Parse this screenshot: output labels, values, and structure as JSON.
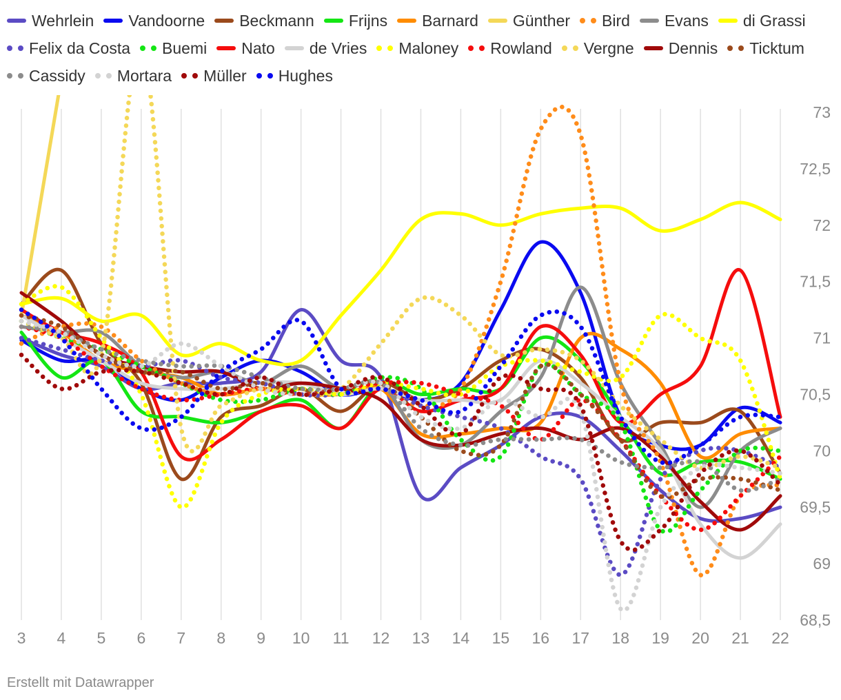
{
  "credit": "Erstellt mit Datawrapper",
  "chart_data": {
    "type": "line",
    "title": "",
    "xlabel": "",
    "ylabel": "",
    "x": [
      3,
      4,
      5,
      6,
      7,
      8,
      9,
      10,
      11,
      12,
      13,
      14,
      15,
      16,
      17,
      18,
      19,
      20,
      21,
      22
    ],
    "ylim": [
      68.5,
      73
    ],
    "yticks": [
      "73",
      "72,5",
      "72",
      "71,5",
      "71",
      "70,5",
      "70",
      "69,5",
      "69",
      "68,5"
    ],
    "ytick_values": [
      73,
      72.5,
      72,
      71.5,
      71,
      70.5,
      70,
      69.5,
      69,
      68.5
    ],
    "grid": "vertical",
    "legend_position": "top",
    "series": [
      {
        "name": "Wehrlein",
        "color": "#5b4bc4",
        "dotted": false,
        "values": [
          71.0,
          70.85,
          70.75,
          70.55,
          70.6,
          70.6,
          70.7,
          71.25,
          70.8,
          70.65,
          69.6,
          69.85,
          70.05,
          70.3,
          70.3,
          70.0,
          69.65,
          69.4,
          69.4,
          69.5
        ]
      },
      {
        "name": "Vandoorne",
        "color": "#0a0af0",
        "dotted": false,
        "values": [
          70.98,
          70.8,
          70.8,
          70.55,
          70.45,
          70.65,
          70.8,
          70.7,
          70.5,
          70.55,
          70.45,
          70.6,
          71.25,
          71.85,
          71.4,
          70.3,
          70.05,
          70.05,
          70.38,
          70.25
        ]
      },
      {
        "name": "Beckmann",
        "color": "#9b4a1c",
        "dotted": false,
        "values": [
          71.3,
          71.6,
          70.95,
          70.6,
          69.75,
          70.3,
          70.4,
          70.55,
          70.35,
          70.6,
          70.45,
          70.55,
          70.8,
          70.9,
          70.65,
          70.1,
          70.25,
          70.25,
          70.35,
          69.8
        ]
      },
      {
        "name": "Frijns",
        "color": "#14e614",
        "dotted": false,
        "values": [
          71.05,
          70.65,
          70.8,
          70.35,
          70.3,
          70.25,
          70.35,
          70.45,
          70.2,
          70.6,
          70.5,
          70.55,
          70.55,
          71.0,
          70.8,
          70.3,
          69.8,
          69.9,
          69.9,
          69.75
        ]
      },
      {
        "name": "Barnard",
        "color": "#ff8c00",
        "dotted": false,
        "values": [
          71.2,
          71.05,
          70.8,
          70.7,
          70.65,
          70.5,
          70.55,
          70.5,
          70.5,
          70.55,
          70.15,
          70.15,
          70.2,
          70.25,
          71.0,
          70.9,
          70.6,
          69.95,
          70.15,
          70.2
        ]
      },
      {
        "name": "Günther",
        "color": "#f4d858",
        "dotted": false,
        "values": [
          71.2,
          73.3,
          null,
          null,
          null,
          null,
          null,
          null,
          null,
          null,
          null,
          null,
          null,
          null,
          null,
          null,
          null,
          null,
          null,
          null
        ]
      },
      {
        "name": "Bird",
        "color": "#ff8c1a",
        "dotted": true,
        "values": [
          70.95,
          71.1,
          71.1,
          70.8,
          70.6,
          70.5,
          70.55,
          70.5,
          70.5,
          70.55,
          70.4,
          70.55,
          71.5,
          72.85,
          72.8,
          70.6,
          69.9,
          68.9,
          69.6,
          69.7
        ]
      },
      {
        "name": "Evans",
        "color": "#8c8c8c",
        "dotted": false,
        "values": [
          71.1,
          71.05,
          71.05,
          70.75,
          70.65,
          70.7,
          70.6,
          70.75,
          70.55,
          70.6,
          70.1,
          70.05,
          70.35,
          70.65,
          71.45,
          70.6,
          70.05,
          69.5,
          70.0,
          70.2
        ]
      },
      {
        "name": "di Grassi",
        "color": "#ffff00",
        "dotted": false,
        "values": [
          71.3,
          71.35,
          71.15,
          71.2,
          70.85,
          70.95,
          70.8,
          70.8,
          71.2,
          71.6,
          72.05,
          72.1,
          72.0,
          72.1,
          72.15,
          72.15,
          71.95,
          72.05,
          72.2,
          72.05
        ]
      },
      {
        "name": "Felix da Costa",
        "color": "#5b4bc4",
        "dotted": true,
        "values": [
          71.0,
          70.9,
          70.8,
          70.75,
          70.8,
          70.65,
          70.6,
          70.5,
          70.5,
          70.55,
          70.4,
          70.3,
          70.2,
          69.95,
          69.75,
          68.9,
          69.75,
          70.0,
          70.0,
          69.85
        ]
      },
      {
        "name": "Buemi",
        "color": "#14e614",
        "dotted": true,
        "values": [
          71.15,
          71.0,
          70.9,
          70.75,
          70.6,
          70.45,
          70.45,
          70.55,
          70.5,
          70.65,
          70.55,
          70.1,
          69.95,
          70.75,
          70.5,
          70.25,
          69.3,
          69.65,
          70.0,
          70.0
        ]
      },
      {
        "name": "Nato",
        "color": "#f50d0d",
        "dotted": false,
        "values": [
          71.25,
          71.05,
          70.95,
          70.7,
          69.95,
          70.1,
          70.35,
          70.4,
          70.2,
          70.55,
          70.35,
          70.45,
          70.55,
          71.1,
          70.85,
          70.25,
          70.5,
          70.75,
          71.6,
          70.3
        ]
      },
      {
        "name": "de Vries",
        "color": "#d3d3d3",
        "dotted": false,
        "values": [
          71.2,
          71.0,
          70.8,
          70.6,
          70.55,
          70.55,
          70.6,
          70.6,
          70.5,
          70.55,
          70.45,
          70.45,
          70.45,
          70.8,
          70.6,
          70.3,
          70.0,
          69.35,
          69.05,
          69.35
        ]
      },
      {
        "name": "Maloney",
        "color": "#ffff00",
        "dotted": true,
        "values": [
          71.3,
          71.45,
          71.0,
          70.5,
          69.5,
          70.25,
          70.5,
          70.55,
          70.5,
          70.6,
          70.55,
          70.5,
          70.75,
          70.8,
          70.7,
          70.65,
          71.2,
          71.0,
          70.8,
          69.75
        ]
      },
      {
        "name": "Rowland",
        "color": "#f50d0d",
        "dotted": true,
        "values": [
          71.1,
          71.0,
          70.75,
          70.55,
          70.45,
          70.5,
          70.55,
          70.5,
          70.55,
          70.6,
          70.6,
          70.5,
          70.4,
          70.1,
          70.45,
          70.1,
          69.6,
          69.3,
          69.6,
          69.95
        ]
      },
      {
        "name": "Vergne",
        "color": "#f4d858",
        "dotted": true,
        "values": [
          71.15,
          71.0,
          70.85,
          73.6,
          70.2,
          70.4,
          70.55,
          70.5,
          70.55,
          70.95,
          71.35,
          71.2,
          70.85,
          70.9,
          70.8,
          70.4,
          70.1,
          69.85,
          69.95,
          69.85
        ]
      },
      {
        "name": "Dennis",
        "color": "#a00a0a",
        "dotted": false,
        "values": [
          71.4,
          71.15,
          70.85,
          70.75,
          70.7,
          70.7,
          70.55,
          70.6,
          70.55,
          70.45,
          70.1,
          70.05,
          70.15,
          70.2,
          70.1,
          70.2,
          69.95,
          69.55,
          69.3,
          69.6
        ]
      },
      {
        "name": "Ticktum",
        "color": "#9b4a1c",
        "dotted": true,
        "values": [
          71.2,
          71.1,
          70.85,
          70.7,
          70.7,
          70.55,
          70.6,
          70.5,
          70.55,
          70.6,
          70.3,
          70.0,
          70.05,
          70.75,
          70.5,
          70.1,
          69.6,
          69.75,
          69.75,
          69.65
        ]
      },
      {
        "name": "Cassidy",
        "color": "#8c8c8c",
        "dotted": true,
        "values": [
          71.1,
          71.05,
          70.9,
          70.8,
          70.75,
          70.75,
          70.65,
          70.55,
          70.55,
          70.6,
          70.2,
          70.05,
          70.1,
          70.1,
          70.1,
          69.9,
          69.85,
          69.9,
          69.65,
          69.75
        ]
      },
      {
        "name": "Mortara",
        "color": "#d3d3d3",
        "dotted": true,
        "values": [
          71.15,
          71.05,
          70.85,
          70.75,
          70.95,
          70.75,
          70.55,
          70.5,
          70.55,
          70.6,
          70.3,
          70.2,
          70.45,
          70.3,
          70.35,
          68.6,
          69.5,
          69.85,
          69.85,
          69.8
        ]
      },
      {
        "name": "Müller",
        "color": "#a00a0a",
        "dotted": true,
        "values": [
          70.85,
          70.55,
          70.7,
          70.7,
          70.6,
          70.5,
          70.65,
          70.5,
          70.55,
          70.65,
          70.4,
          70.15,
          70.65,
          70.55,
          70.4,
          69.2,
          69.3,
          69.8,
          70.0,
          69.7
        ]
      },
      {
        "name": "Hughes",
        "color": "#0a0af0",
        "dotted": true,
        "values": [
          71.25,
          71.0,
          70.55,
          70.2,
          70.3,
          70.7,
          70.9,
          71.15,
          70.55,
          70.55,
          70.45,
          70.35,
          70.75,
          71.2,
          71.1,
          70.3,
          69.9,
          70.05,
          70.3,
          70.3
        ]
      }
    ]
  }
}
